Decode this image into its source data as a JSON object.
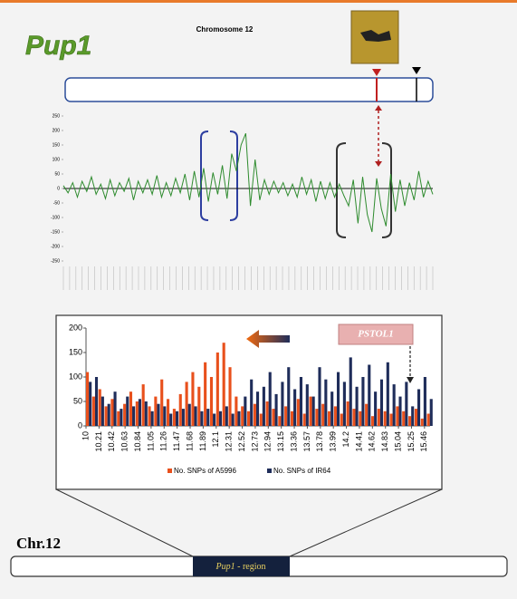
{
  "header": {
    "title": "Pup1",
    "subtitle": "Chromosome 12"
  },
  "chart_data": [
    {
      "type": "line",
      "color": "#2e8b2e",
      "values": [
        10,
        -15,
        20,
        -30,
        25,
        -10,
        40,
        -20,
        15,
        -35,
        30,
        -25,
        20,
        -10,
        35,
        -40,
        25,
        -15,
        30,
        -20,
        45,
        -30,
        20,
        -25,
        35,
        -15,
        50,
        -40,
        60,
        -30,
        70,
        -45,
        55,
        -20,
        80,
        -35,
        120,
        60,
        150,
        190,
        -60,
        100,
        -40,
        30,
        -20,
        25,
        -15,
        20,
        -25,
        15,
        -30,
        40,
        -20,
        30,
        -45,
        25,
        -35,
        20,
        -30,
        15,
        -25,
        -60,
        30,
        -120,
        40,
        -90,
        -150,
        35,
        -70,
        -130,
        50,
        -80,
        30,
        -60,
        20,
        -40,
        60,
        -30,
        25,
        -20
      ],
      "ylim": [
        -250,
        250
      ],
      "yticks": [
        250,
        200,
        150,
        100,
        50,
        0,
        -50,
        -100,
        -150,
        -200,
        -250
      ]
    },
    {
      "type": "bar",
      "x": [
        10.0,
        10.1,
        10.2,
        10.3,
        10.4,
        10.5,
        10.6,
        10.7,
        10.8,
        10.9,
        11.0,
        11.1,
        11.2,
        11.3,
        11.4,
        11.5,
        11.6,
        11.7,
        11.8,
        11.9,
        12.0,
        12.1,
        12.2,
        12.3,
        12.4,
        12.5,
        12.6,
        12.7,
        12.8,
        12.9,
        13.0,
        13.1,
        13.2,
        13.3,
        13.4,
        13.5,
        13.6,
        13.7,
        13.8,
        13.9,
        14.0,
        14.1,
        14.2,
        14.3,
        14.4,
        14.5,
        14.6,
        14.7,
        14.8,
        14.9,
        15.0,
        15.1,
        15.2,
        15.3,
        15.4,
        15.5
      ],
      "series": [
        {
          "name": "No. SNPs of A5996",
          "color": "#e8501c",
          "values": [
            110,
            60,
            75,
            40,
            55,
            30,
            45,
            70,
            50,
            85,
            40,
            60,
            95,
            55,
            35,
            65,
            90,
            110,
            80,
            130,
            100,
            150,
            170,
            120,
            60,
            40,
            30,
            45,
            25,
            50,
            35,
            20,
            40,
            30,
            55,
            25,
            60,
            35,
            45,
            30,
            40,
            25,
            50,
            35,
            30,
            45,
            20,
            35,
            30,
            25,
            40,
            30,
            20,
            35,
            15,
            25
          ]
        },
        {
          "name": "No. SNPs of IR64",
          "color": "#1f2d5a",
          "values": [
            90,
            100,
            60,
            45,
            70,
            35,
            60,
            40,
            55,
            50,
            30,
            45,
            40,
            25,
            30,
            35,
            45,
            40,
            30,
            35,
            25,
            30,
            40,
            25,
            30,
            60,
            95,
            70,
            80,
            110,
            65,
            90,
            120,
            75,
            100,
            85,
            60,
            120,
            95,
            70,
            110,
            90,
            140,
            80,
            100,
            125,
            70,
            95,
            130,
            85,
            60,
            90,
            40,
            75,
            100,
            55
          ]
        }
      ],
      "xlim": [
        10,
        15.55
      ],
      "xticks": [
        10,
        10.21,
        10.42,
        10.63,
        10.84,
        11.05,
        11.26,
        11.47,
        11.68,
        11.89,
        12.1,
        12.31,
        12.52,
        12.73,
        12.94,
        13.15,
        13.36,
        13.57,
        13.78,
        13.99,
        14.2,
        14.41,
        14.62,
        14.83,
        15.04,
        15.25,
        15.46
      ],
      "ylim": [
        0,
        200
      ],
      "yticks": [
        0,
        50,
        100,
        150,
        200
      ]
    }
  ],
  "labels": {
    "gene": "PSTOL1",
    "chromosome": "Chr.12",
    "region": "Pup1",
    "region_suffix": "- region"
  }
}
